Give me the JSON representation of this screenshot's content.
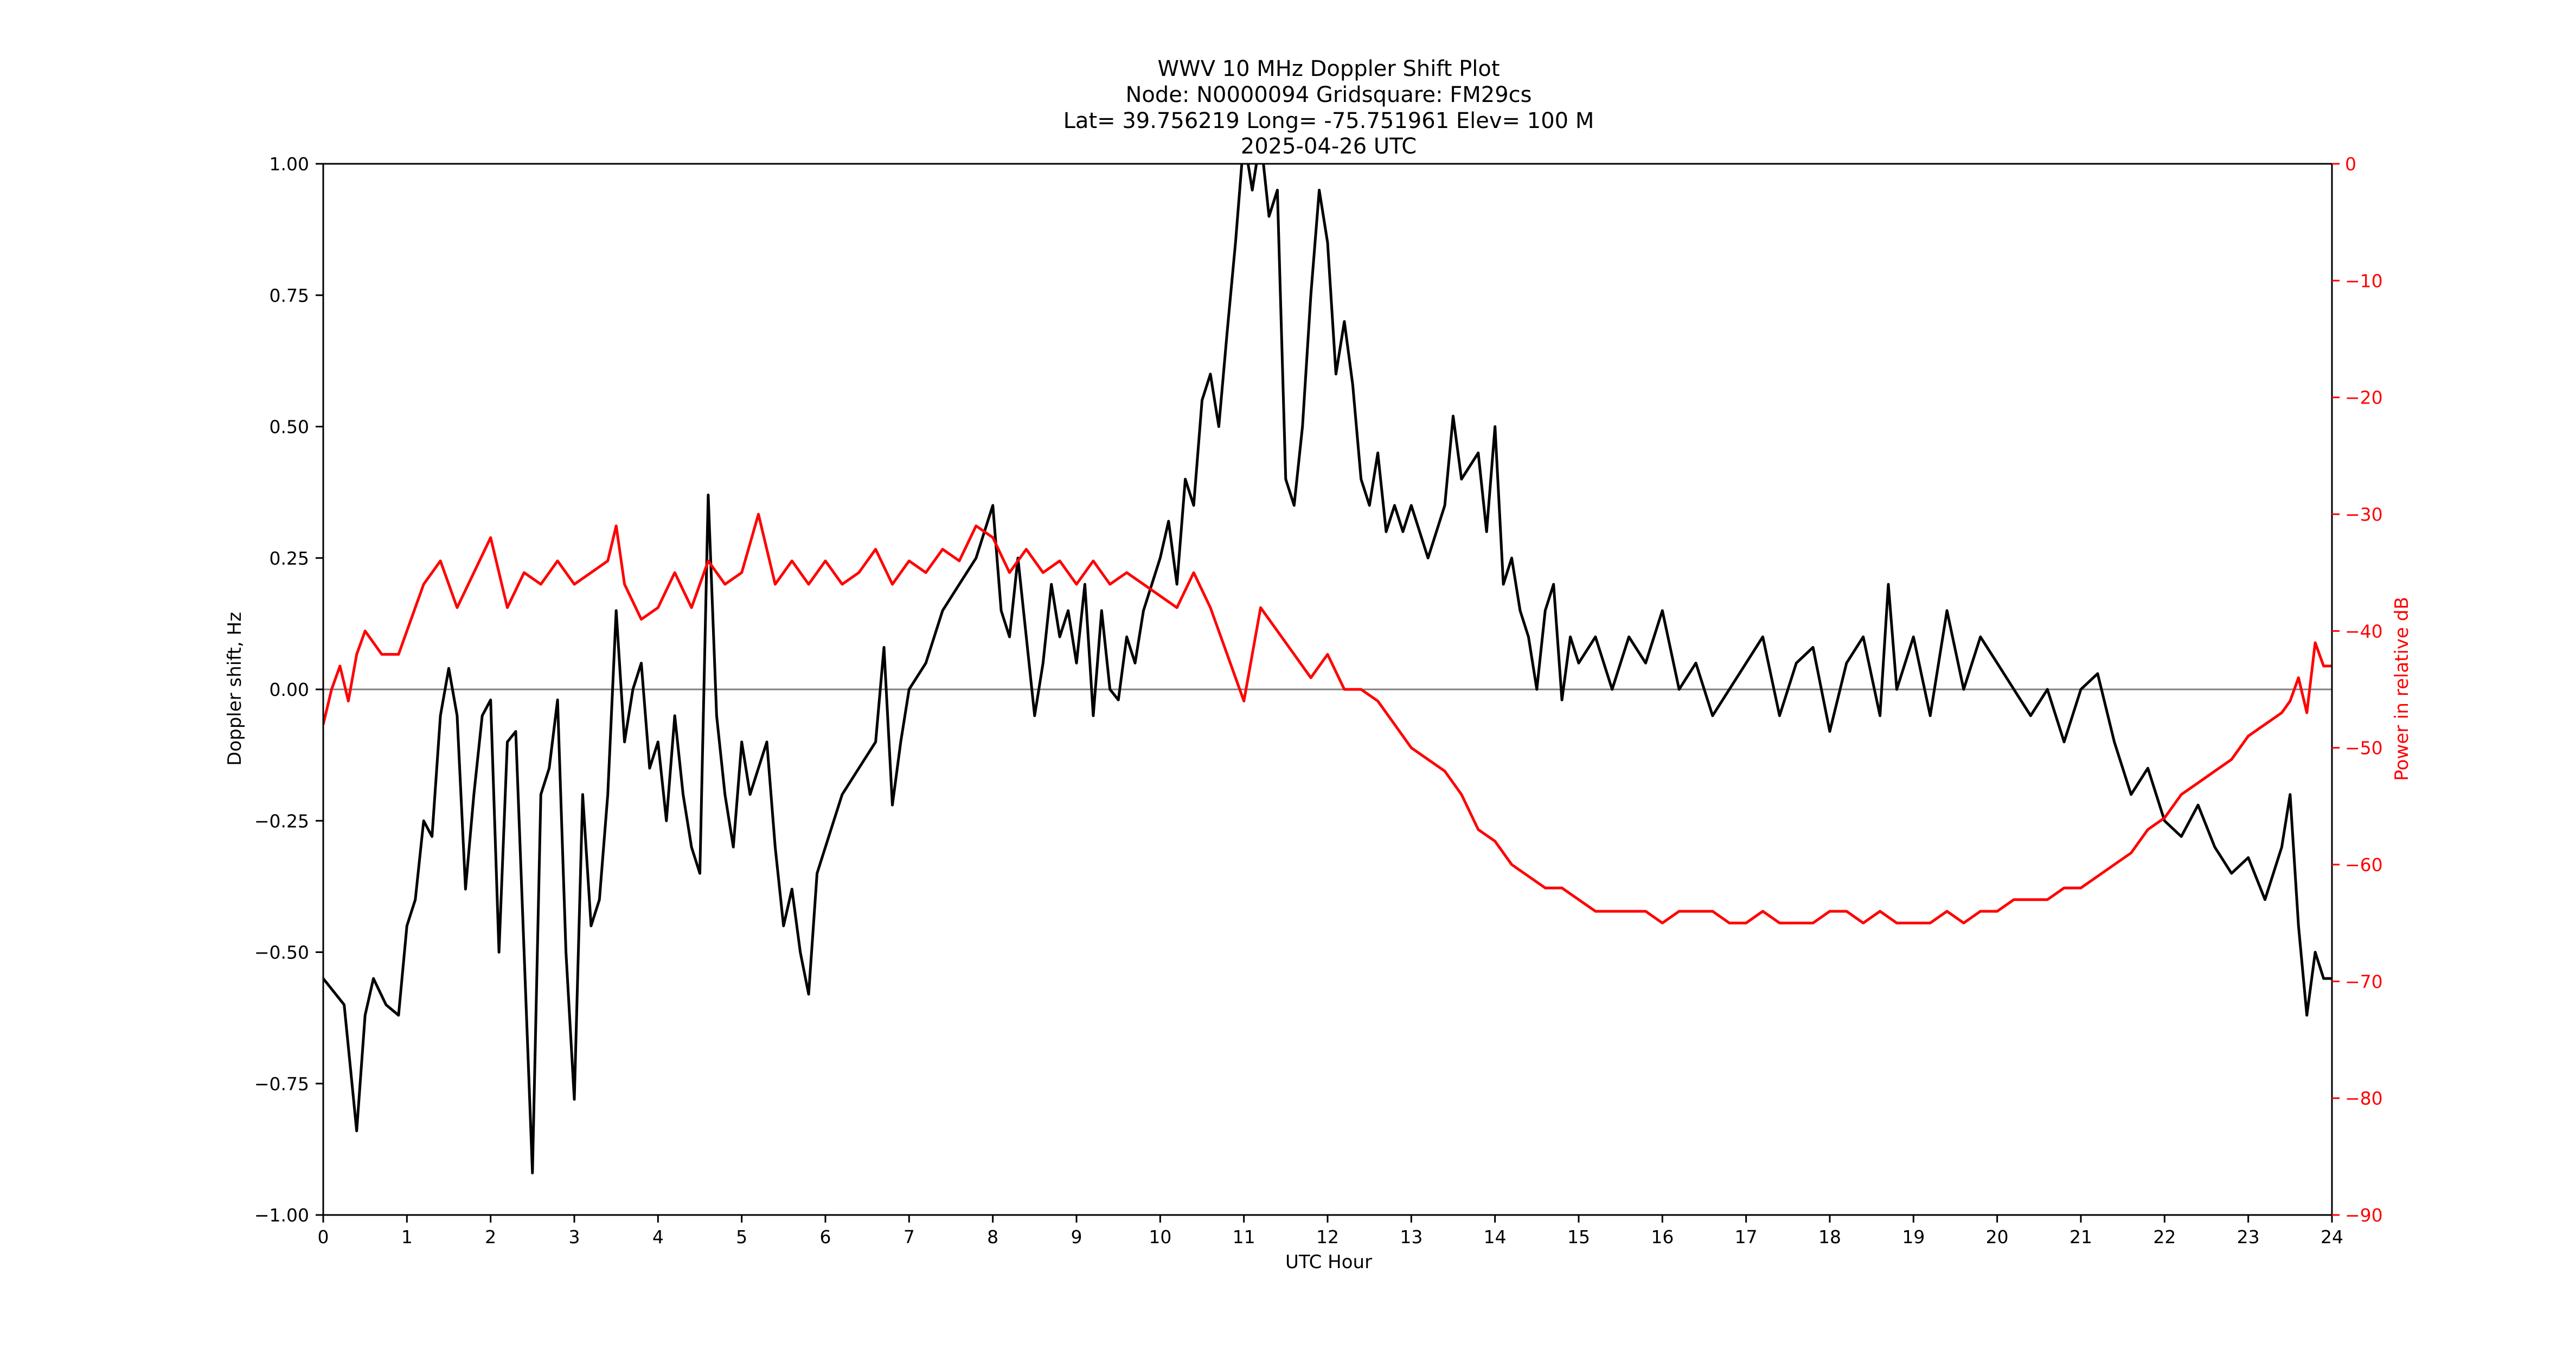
{
  "chart_data": {
    "type": "line",
    "title": {
      "line1": "WWV 10 MHz Doppler Shift Plot",
      "line2": "Node:  N0000094     Gridsquare:  FM29cs",
      "line3": "Lat= 39.756219    Long= -75.751961    Elev= 100 M",
      "line4": "2025-04-26  UTC"
    },
    "xlabel": "UTC Hour",
    "ylabel_left": "Doppler shift, Hz",
    "ylabel_right": "Power in relative dB",
    "xlim": [
      0,
      24
    ],
    "ylim_left": [
      -1.0,
      1.0
    ],
    "ylim_right": [
      -90,
      0
    ],
    "x_ticks": [
      "0",
      "1",
      "2",
      "3",
      "4",
      "5",
      "6",
      "7",
      "8",
      "9",
      "10",
      "11",
      "12",
      "13",
      "14",
      "15",
      "16",
      "17",
      "18",
      "19",
      "20",
      "21",
      "22",
      "23",
      "24"
    ],
    "y_ticks_left": [
      "1.00",
      "0.75",
      "0.50",
      "0.25",
      "0.00",
      "−0.25",
      "−0.50",
      "−0.75",
      "−1.00"
    ],
    "y_ticks_right": [
      "0",
      "−10",
      "−20",
      "−30",
      "−40",
      "−50",
      "−60",
      "−70",
      "−80",
      "−90"
    ],
    "zero_line": 0.0,
    "grid": false,
    "colors": {
      "doppler": "#000000",
      "power": "#ff0000",
      "zero_line": "#808080",
      "right_axis": "#ff0000"
    },
    "series": [
      {
        "axis": "left",
        "x": [
          0,
          0.25,
          0.4,
          0.5,
          0.6,
          0.75,
          0.9,
          1.0,
          1.1,
          1.2,
          1.3,
          1.4,
          1.5,
          1.6,
          1.7,
          1.8,
          1.9,
          2.0,
          2.1,
          2.2,
          2.3,
          2.4,
          2.5,
          2.6,
          2.7,
          2.8,
          2.9,
          3.0,
          3.1,
          3.2,
          3.3,
          3.4,
          3.5,
          3.6,
          3.7,
          3.8,
          3.9,
          4.0,
          4.1,
          4.2,
          4.3,
          4.4,
          4.5,
          4.6,
          4.7,
          4.8,
          4.9,
          5.0,
          5.1,
          5.2,
          5.3,
          5.4,
          5.5,
          5.6,
          5.7,
          5.8,
          5.9,
          6.0,
          6.2,
          6.4,
          6.6,
          6.7,
          6.8,
          6.9,
          7.0,
          7.2,
          7.4,
          7.6,
          7.8,
          7.9,
          8.0,
          8.1,
          8.2,
          8.3,
          8.4,
          8.5,
          8.6,
          8.7,
          8.8,
          8.9,
          9.0,
          9.1,
          9.2,
          9.3,
          9.4,
          9.5,
          9.6,
          9.7,
          9.8,
          9.9,
          10.0,
          10.1,
          10.2,
          10.3,
          10.4,
          10.5,
          10.6,
          10.7,
          10.8,
          10.9,
          11.0,
          11.1,
          11.2,
          11.3,
          11.4,
          11.5,
          11.6,
          11.7,
          11.8,
          11.9,
          12.0,
          12.1,
          12.2,
          12.3,
          12.4,
          12.5,
          12.6,
          12.7,
          12.8,
          12.9,
          13.0,
          13.2,
          13.4,
          13.5,
          13.6,
          13.8,
          13.9,
          14.0,
          14.1,
          14.2,
          14.3,
          14.4,
          14.5,
          14.6,
          14.7,
          14.8,
          14.9,
          15.0,
          15.2,
          15.4,
          15.6,
          15.8,
          16.0,
          16.2,
          16.4,
          16.6,
          16.8,
          17.0,
          17.2,
          17.4,
          17.6,
          17.8,
          18.0,
          18.2,
          18.4,
          18.6,
          18.7,
          18.8,
          19.0,
          19.2,
          19.4,
          19.6,
          19.8,
          20.0,
          20.2,
          20.4,
          20.6,
          20.8,
          21.0,
          21.2,
          21.4,
          21.6,
          21.8,
          22.0,
          22.2,
          22.4,
          22.6,
          22.8,
          23.0,
          23.2,
          23.4,
          23.5,
          23.6,
          23.7,
          23.8,
          23.9,
          24.0
        ],
        "y": [
          -0.55,
          -0.6,
          -0.84,
          -0.62,
          -0.55,
          -0.6,
          -0.62,
          -0.45,
          -0.4,
          -0.25,
          -0.28,
          -0.05,
          0.04,
          -0.05,
          -0.38,
          -0.2,
          -0.05,
          -0.02,
          -0.5,
          -0.1,
          -0.08,
          -0.5,
          -0.92,
          -0.2,
          -0.15,
          -0.02,
          -0.5,
          -0.78,
          -0.2,
          -0.45,
          -0.4,
          -0.2,
          0.15,
          -0.1,
          0.0,
          0.05,
          -0.15,
          -0.1,
          -0.25,
          -0.05,
          -0.2,
          -0.3,
          -0.35,
          0.37,
          -0.05,
          -0.2,
          -0.3,
          -0.1,
          -0.2,
          -0.15,
          -0.1,
          -0.3,
          -0.45,
          -0.38,
          -0.5,
          -0.58,
          -0.35,
          -0.3,
          -0.2,
          -0.15,
          -0.1,
          0.08,
          -0.22,
          -0.1,
          0.0,
          0.05,
          0.15,
          0.2,
          0.25,
          0.3,
          0.35,
          0.15,
          0.1,
          0.25,
          0.1,
          -0.05,
          0.05,
          0.2,
          0.1,
          0.15,
          0.05,
          0.2,
          -0.05,
          0.15,
          0.0,
          -0.02,
          0.1,
          0.05,
          0.15,
          0.2,
          0.25,
          0.32,
          0.2,
          0.4,
          0.35,
          0.55,
          0.6,
          0.5,
          0.68,
          0.85,
          1.05,
          0.95,
          1.05,
          0.9,
          0.95,
          0.4,
          0.35,
          0.5,
          0.75,
          0.95,
          0.85,
          0.6,
          0.7,
          0.58,
          0.4,
          0.35,
          0.45,
          0.3,
          0.35,
          0.3,
          0.35,
          0.25,
          0.35,
          0.52,
          0.4,
          0.45,
          0.3,
          0.5,
          0.2,
          0.25,
          0.15,
          0.1,
          0.0,
          0.15,
          0.2,
          -0.02,
          0.1,
          0.05,
          0.1,
          0.0,
          0.1,
          0.05,
          0.15,
          0.0,
          0.05,
          -0.05,
          0.0,
          0.05,
          0.1,
          -0.05,
          0.05,
          0.08,
          -0.08,
          0.05,
          0.1,
          -0.05,
          0.2,
          0.0,
          0.1,
          -0.05,
          0.15,
          0.0,
          0.1,
          0.05,
          0.0,
          -0.05,
          0.0,
          -0.1,
          0.0,
          0.03,
          -0.1,
          -0.2,
          -0.15,
          -0.25,
          -0.28,
          -0.22,
          -0.3,
          -0.35,
          -0.32,
          -0.4,
          -0.3,
          -0.2,
          -0.45,
          -0.62,
          -0.5,
          -0.55,
          -0.55
        ]
      },
      {
        "axis": "right",
        "x": [
          0,
          0.1,
          0.2,
          0.3,
          0.4,
          0.5,
          0.7,
          0.9,
          1.0,
          1.2,
          1.4,
          1.6,
          1.8,
          2.0,
          2.2,
          2.4,
          2.6,
          2.8,
          3.0,
          3.2,
          3.4,
          3.5,
          3.6,
          3.8,
          4.0,
          4.2,
          4.4,
          4.6,
          4.8,
          5.0,
          5.2,
          5.4,
          5.6,
          5.8,
          6.0,
          6.2,
          6.4,
          6.6,
          6.8,
          7.0,
          7.2,
          7.4,
          7.6,
          7.8,
          8.0,
          8.2,
          8.4,
          8.6,
          8.8,
          9.0,
          9.2,
          9.4,
          9.6,
          9.8,
          10.0,
          10.2,
          10.4,
          10.6,
          10.8,
          11.0,
          11.2,
          11.4,
          11.6,
          11.8,
          12.0,
          12.2,
          12.4,
          12.6,
          12.8,
          13.0,
          13.2,
          13.4,
          13.6,
          13.8,
          14.0,
          14.2,
          14.4,
          14.6,
          14.8,
          15.0,
          15.2,
          15.4,
          15.6,
          15.8,
          16.0,
          16.2,
          16.4,
          16.6,
          16.8,
          17.0,
          17.2,
          17.4,
          17.6,
          17.8,
          18.0,
          18.2,
          18.4,
          18.6,
          18.8,
          19.0,
          19.2,
          19.4,
          19.6,
          19.8,
          20.0,
          20.2,
          20.4,
          20.6,
          20.8,
          21.0,
          21.2,
          21.4,
          21.6,
          21.8,
          22.0,
          22.2,
          22.4,
          22.6,
          22.8,
          23.0,
          23.2,
          23.4,
          23.5,
          23.6,
          23.7,
          23.8,
          23.9,
          24.0
        ],
        "y": [
          -48,
          -45,
          -43,
          -46,
          -42,
          -40,
          -42,
          -42,
          -40,
          -36,
          -34,
          -38,
          -35,
          -32,
          -38,
          -35,
          -36,
          -34,
          -36,
          -35,
          -34,
          -31,
          -36,
          -39,
          -38,
          -35,
          -38,
          -34,
          -36,
          -35,
          -30,
          -36,
          -34,
          -36,
          -34,
          -36,
          -35,
          -33,
          -36,
          -34,
          -35,
          -33,
          -34,
          -31,
          -32,
          -35,
          -33,
          -35,
          -34,
          -36,
          -34,
          -36,
          -35,
          -36,
          -37,
          -38,
          -35,
          -38,
          -42,
          -46,
          -38,
          -40,
          -42,
          -44,
          -42,
          -45,
          -45,
          -46,
          -48,
          -50,
          -51,
          -52,
          -54,
          -57,
          -58,
          -60,
          -61,
          -62,
          -62,
          -63,
          -64,
          -64,
          -64,
          -64,
          -65,
          -64,
          -64,
          -64,
          -65,
          -65,
          -64,
          -65,
          -65,
          -65,
          -64,
          -64,
          -65,
          -64,
          -65,
          -65,
          -65,
          -64,
          -65,
          -64,
          -64,
          -63,
          -63,
          -63,
          -62,
          -62,
          -61,
          -60,
          -59,
          -57,
          -56,
          -54,
          -53,
          -52,
          -51,
          -49,
          -48,
          -47,
          -46,
          -44,
          -47,
          -41,
          -43,
          -43
        ]
      }
    ]
  }
}
